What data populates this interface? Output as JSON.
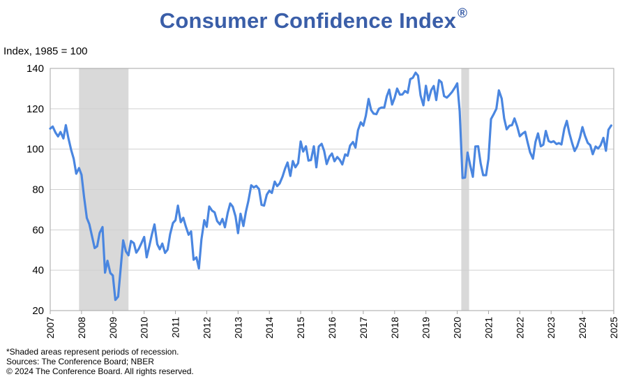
{
  "chart_data": {
    "type": "line",
    "title": "Consumer Confidence Index",
    "title_mark": "®",
    "ylabel": "Index, 1985 = 100",
    "xlabel": "",
    "ylim": [
      20,
      140
    ],
    "yticks": [
      20,
      40,
      60,
      80,
      100,
      120,
      140
    ],
    "xlim": [
      2007.0,
      2025.0
    ],
    "xticks": [
      "2007",
      "2008",
      "2009",
      "2010",
      "2011",
      "2012",
      "2013",
      "2014",
      "2015",
      "2016",
      "2017",
      "2018",
      "2019",
      "2020",
      "2021",
      "2022",
      "2023",
      "2024",
      "2025"
    ],
    "grid": "horizontal",
    "legend": "none",
    "colors": {
      "line": "#4a86e0",
      "recession": "#d9d9d9",
      "title": "#3a5ea8",
      "grid": "#d0d0d0",
      "frame": "#a6a6a6"
    },
    "recessions": [
      {
        "start": 2007.92,
        "end": 2009.5
      },
      {
        "start": 2020.13,
        "end": 2020.38
      }
    ],
    "series": [
      {
        "x": [
          2007.0,
          2007.08,
          2007.17,
          2007.25,
          2007.33,
          2007.42,
          2007.5,
          2007.58,
          2007.67,
          2007.75,
          2007.83,
          2007.92,
          2008.0,
          2008.08,
          2008.17,
          2008.25,
          2008.33,
          2008.42,
          2008.5,
          2008.58,
          2008.67,
          2008.75,
          2008.83,
          2008.92,
          2009.0,
          2009.08,
          2009.17,
          2009.25,
          2009.33,
          2009.42,
          2009.5,
          2009.58,
          2009.67,
          2009.75,
          2009.83,
          2009.92,
          2010.0,
          2010.08,
          2010.17,
          2010.25,
          2010.33,
          2010.42,
          2010.5,
          2010.58,
          2010.67,
          2010.75,
          2010.83,
          2010.92,
          2011.0,
          2011.08,
          2011.17,
          2011.25,
          2011.33,
          2011.42,
          2011.5,
          2011.58,
          2011.67,
          2011.75,
          2011.83,
          2011.92,
          2012.0,
          2012.08,
          2012.17,
          2012.25,
          2012.33,
          2012.42,
          2012.5,
          2012.58,
          2012.67,
          2012.75,
          2012.83,
          2012.92,
          2013.0,
          2013.08,
          2013.17,
          2013.25,
          2013.33,
          2013.42,
          2013.5,
          2013.58,
          2013.67,
          2013.75,
          2013.83,
          2013.92,
          2014.0,
          2014.08,
          2014.17,
          2014.25,
          2014.33,
          2014.42,
          2014.5,
          2014.58,
          2014.67,
          2014.75,
          2014.83,
          2014.92,
          2015.0,
          2015.08,
          2015.17,
          2015.25,
          2015.33,
          2015.42,
          2015.5,
          2015.58,
          2015.67,
          2015.75,
          2015.83,
          2015.92,
          2016.0,
          2016.08,
          2016.17,
          2016.25,
          2016.33,
          2016.42,
          2016.5,
          2016.58,
          2016.67,
          2016.75,
          2016.83,
          2016.92,
          2017.0,
          2017.08,
          2017.17,
          2017.25,
          2017.33,
          2017.42,
          2017.5,
          2017.58,
          2017.67,
          2017.75,
          2017.83,
          2017.92,
          2018.0,
          2018.08,
          2018.17,
          2018.25,
          2018.33,
          2018.42,
          2018.5,
          2018.58,
          2018.67,
          2018.75,
          2018.83,
          2018.92,
          2019.0,
          2019.08,
          2019.17,
          2019.25,
          2019.33,
          2019.42,
          2019.5,
          2019.58,
          2019.67,
          2019.75,
          2019.83,
          2019.92,
          2020.0,
          2020.08,
          2020.17,
          2020.25,
          2020.33,
          2020.42,
          2020.5,
          2020.58,
          2020.67,
          2020.75,
          2020.83,
          2020.92,
          2021.0,
          2021.08,
          2021.17,
          2021.25,
          2021.33,
          2021.42,
          2021.5,
          2021.58,
          2021.67,
          2021.75,
          2021.83,
          2021.92,
          2022.0,
          2022.08,
          2022.17,
          2022.25,
          2022.33,
          2022.42,
          2022.5,
          2022.58,
          2022.67,
          2022.75,
          2022.83,
          2022.92,
          2023.0,
          2023.08,
          2023.17,
          2023.25,
          2023.33,
          2023.42,
          2023.5,
          2023.58,
          2023.67,
          2023.75,
          2023.83,
          2023.92,
          2024.0,
          2024.08,
          2024.17,
          2024.25,
          2024.33,
          2024.42,
          2024.5,
          2024.58,
          2024.67,
          2024.75,
          2024.83,
          2024.92
        ],
        "y": [
          110.2,
          111.2,
          108.2,
          106.3,
          108.5,
          105.3,
          111.9,
          105.6,
          99.5,
          95.2,
          87.8,
          90.6,
          87.3,
          76.4,
          65.9,
          62.8,
          57.2,
          51.0,
          51.9,
          58.5,
          61.4,
          38.8,
          44.7,
          38.6,
          37.4,
          25.3,
          26.9,
          40.8,
          54.8,
          49.3,
          47.4,
          54.5,
          53.4,
          48.7,
          50.6,
          53.6,
          56.5,
          46.4,
          52.3,
          57.9,
          62.7,
          52.9,
          50.4,
          53.2,
          48.6,
          50.2,
          57.8,
          63.4,
          64.8,
          72.0,
          63.8,
          66.0,
          61.7,
          57.6,
          59.2,
          45.2,
          46.4,
          40.9,
          55.2,
          64.8,
          61.5,
          71.6,
          69.5,
          68.7,
          64.4,
          62.7,
          65.4,
          61.3,
          68.4,
          73.1,
          71.5,
          66.7,
          58.4,
          68.0,
          61.9,
          69.0,
          74.3,
          82.1,
          81.0,
          81.8,
          80.2,
          72.4,
          72.0,
          77.5,
          79.4,
          78.3,
          83.9,
          81.7,
          83.0,
          86.4,
          90.3,
          93.4,
          86.7,
          94.1,
          91.0,
          93.1,
          103.8,
          98.8,
          101.4,
          94.3,
          94.6,
          101.4,
          91.0,
          101.3,
          102.6,
          99.1,
          92.6,
          96.3,
          97.8,
          94.0,
          96.1,
          94.7,
          92.4,
          97.4,
          96.7,
          101.8,
          103.5,
          100.8,
          109.4,
          113.3,
          111.6,
          116.5,
          124.9,
          119.4,
          117.6,
          117.3,
          120.0,
          120.6,
          120.6,
          126.2,
          129.5,
          122.1,
          125.4,
          130.0,
          127.0,
          127.1,
          128.8,
          127.9,
          134.7,
          135.3,
          137.9,
          136.4,
          126.6,
          121.7,
          131.4,
          124.2,
          129.2,
          131.3,
          124.3,
          134.2,
          133.1,
          126.3,
          125.5,
          126.8,
          128.2,
          130.4,
          132.6,
          118.8,
          85.7,
          85.9,
          98.3,
          91.7,
          86.3,
          101.3,
          101.4,
          92.9,
          87.1,
          87.1,
          95.2,
          114.9,
          117.5,
          120.0,
          129.1,
          125.1,
          115.2,
          109.8,
          111.6,
          111.9,
          115.2,
          111.1,
          106.4,
          107.6,
          108.6,
          103.2,
          98.4,
          95.3,
          103.6,
          107.8,
          101.4,
          102.2,
          109.0,
          104.0,
          103.4,
          103.9,
          102.5,
          103.0,
          102.3,
          110.1,
          114.0,
          108.0,
          103.0,
          99.1,
          101.3,
          105.7,
          110.9,
          106.7,
          103.1,
          102.0,
          97.5,
          101.3,
          100.3,
          101.9,
          105.6,
          99.2,
          109.6,
          111.7
        ]
      }
    ]
  },
  "footnotes": {
    "note": "*Shaded areas represent periods of recession.",
    "sources": "Sources: The Conference Board;  NBER",
    "copyright": "© 2024 The Conference Board. All rights reserved."
  }
}
